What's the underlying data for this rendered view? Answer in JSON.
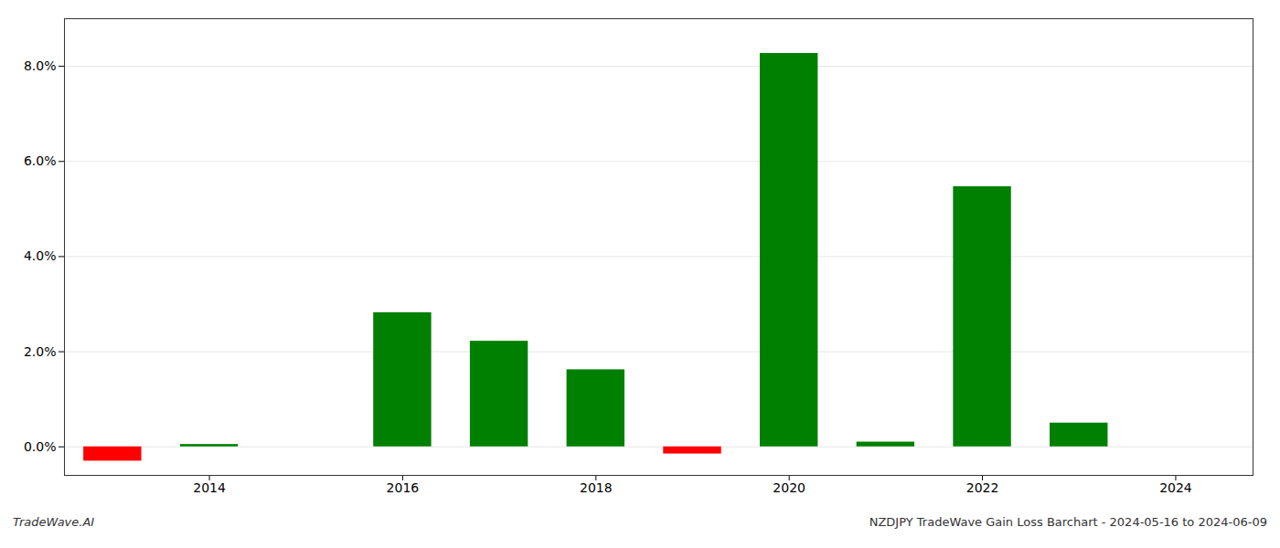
{
  "chart_data": {
    "type": "bar",
    "x": [
      2013,
      2014,
      2015,
      2016,
      2017,
      2018,
      2019,
      2020,
      2021,
      2022,
      2023,
      2024
    ],
    "values": [
      -0.003,
      0.0005,
      0.0,
      0.0282,
      0.0222,
      0.0162,
      -0.0015,
      0.0827,
      0.001,
      0.0547,
      0.005,
      0.0
    ],
    "colors": [
      "#ff0000",
      "#008000",
      "#008000",
      "#008000",
      "#008000",
      "#008000",
      "#ff0000",
      "#008000",
      "#008000",
      "#008000",
      "#008000",
      "#008000"
    ],
    "xlim": [
      2012.5,
      2024.8
    ],
    "ylim": [
      -0.006,
      0.09
    ],
    "xticks": [
      2014,
      2016,
      2018,
      2020,
      2022,
      2024
    ],
    "yticks": [
      {
        "value": 0.0,
        "label": "0.0%"
      },
      {
        "value": 0.02,
        "label": "2.0%"
      },
      {
        "value": 0.04,
        "label": "4.0%"
      },
      {
        "value": 0.06,
        "label": "6.0%"
      },
      {
        "value": 0.08,
        "label": "8.0%"
      }
    ],
    "grid": true,
    "annotations": [
      "TradeWave.AI",
      "NZDJPY TradeWave Gain Loss Barchart - 2024-05-16 to 2024-06-09"
    ]
  }
}
